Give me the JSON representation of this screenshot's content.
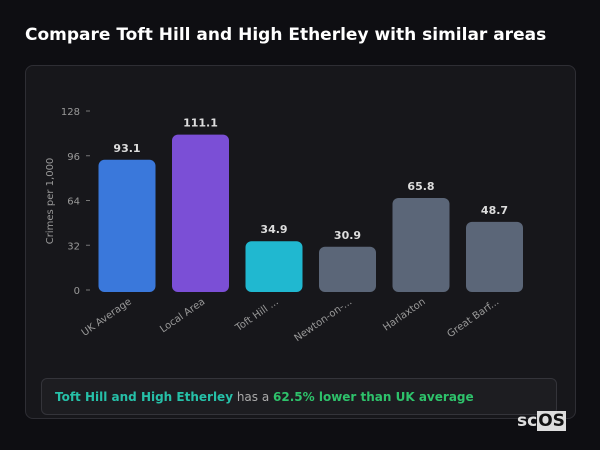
{
  "title": "Compare Toft Hill and High Etherley with similar areas",
  "chart_data": {
    "type": "bar",
    "ylabel": "Crimes per 1,000",
    "xlabel": "",
    "ylim": [
      0,
      128
    ],
    "yticks": [
      0,
      32,
      64,
      96,
      128
    ],
    "categories": [
      "UK Average",
      "Local Area",
      "Toft Hill ...",
      "Newton-on-...",
      "Harlaxton",
      "Great Barf..."
    ],
    "values": [
      93.1,
      111.1,
      34.9,
      30.9,
      65.8,
      48.7
    ],
    "colors": [
      "#3a78db",
      "#7b4fd6",
      "#20b8d0",
      "#5b6678",
      "#5b6678",
      "#5b6678"
    ],
    "grid": false
  },
  "summary": {
    "area": "Toft Hill and High Etherley",
    "middle": " has a ",
    "highlight": "62.5% lower than UK average"
  },
  "logo": {
    "prefix": "sc",
    "boxed": "OS"
  }
}
